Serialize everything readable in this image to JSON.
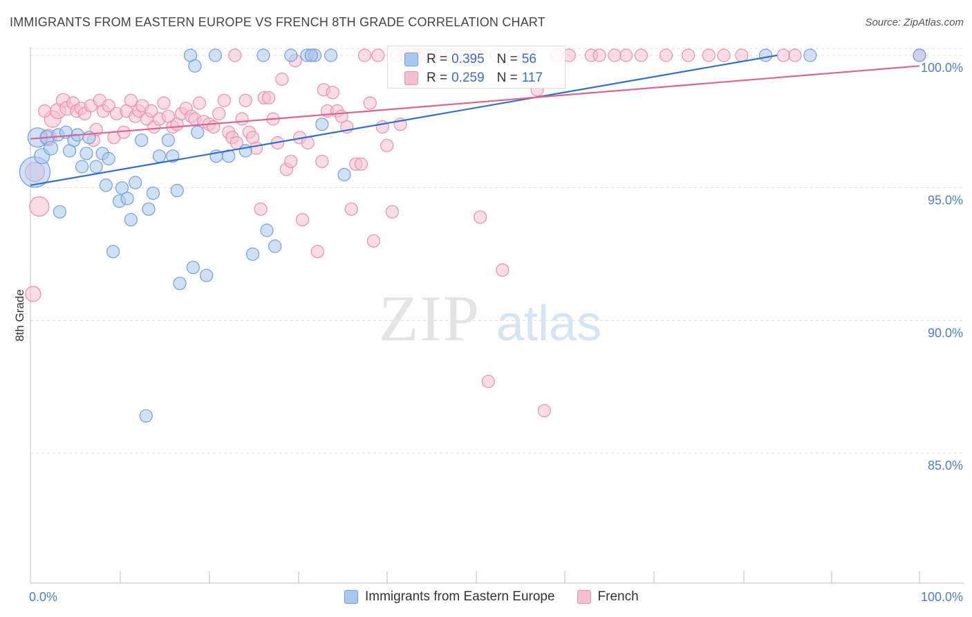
{
  "title": "IMMIGRANTS FROM EASTERN EUROPE VS FRENCH 8TH GRADE CORRELATION CHART",
  "source": "Source: ZipAtlas.com",
  "watermark": {
    "zip": "ZIP",
    "atlas": "atlas"
  },
  "colors": {
    "blue_fill": "#aac8ee",
    "blue_stroke": "#6f9fde",
    "blue_line": "#2e6fce",
    "pink_fill": "#f5bfd0",
    "pink_stroke": "#e98fae",
    "pink_line": "#e0628e",
    "axis_label": "#4a7fd0",
    "grid": "#dddddd"
  },
  "stats": {
    "blue": {
      "r_label": "R =",
      "r_value": "0.395",
      "n_label": "N =",
      "n_value": "56"
    },
    "pink": {
      "r_label": "R =",
      "r_value": "0.259",
      "n_label": "N =",
      "n_value": "117"
    }
  },
  "legend": {
    "blue": "Immigrants from Eastern Europe",
    "pink": "French"
  },
  "chart_data": {
    "type": "scatter",
    "title": "IMMIGRANTS FROM EASTERN EUROPE VS FRENCH 8TH GRADE CORRELATION CHART",
    "xlabel": "",
    "ylabel": "8th Grade",
    "xlim": [
      0,
      105
    ],
    "ylim": [
      80.5,
      100.8
    ],
    "x_tick_labels": [
      "0.0%",
      "100.0%"
    ],
    "y_ticks": [
      85,
      90,
      95,
      100
    ],
    "y_tick_labels": [
      "85.0%",
      "90.0%",
      "95.0%",
      "100.0%"
    ],
    "grid": true,
    "series": [
      {
        "name": "Immigrants from Eastern Europe",
        "color": "blue",
        "trend": {
          "x": [
            0,
            84
          ],
          "y": [
            95.1,
            100.0
          ]
        },
        "points": [
          [
            0.5,
            95.6,
            22
          ],
          [
            0.8,
            96.9,
            14
          ],
          [
            1.3,
            96.2,
            11
          ],
          [
            1.9,
            96.9,
            10
          ],
          [
            2.3,
            96.5,
            10
          ],
          [
            3.1,
            97.0,
            9
          ],
          [
            3.3,
            94.1,
            9
          ],
          [
            4.0,
            97.1,
            9
          ],
          [
            4.4,
            96.4,
            9
          ],
          [
            4.9,
            96.8,
            9
          ],
          [
            5.3,
            97.0,
            9
          ],
          [
            5.8,
            95.8,
            9
          ],
          [
            6.3,
            96.3,
            9
          ],
          [
            6.6,
            96.9,
            9
          ],
          [
            7.4,
            95.8,
            9
          ],
          [
            8.1,
            96.3,
            9
          ],
          [
            8.5,
            95.1,
            9
          ],
          [
            8.8,
            96.1,
            9
          ],
          [
            9.3,
            92.6,
            9
          ],
          [
            10.0,
            94.5,
            9
          ],
          [
            10.3,
            95.0,
            9
          ],
          [
            10.9,
            94.6,
            9
          ],
          [
            11.3,
            93.8,
            9
          ],
          [
            11.8,
            95.2,
            9
          ],
          [
            12.5,
            96.8,
            9
          ],
          [
            13.0,
            86.4,
            9
          ],
          [
            13.3,
            94.2,
            9
          ],
          [
            13.8,
            94.8,
            9
          ],
          [
            14.5,
            96.2,
            9
          ],
          [
            15.5,
            96.8,
            9
          ],
          [
            16.0,
            96.2,
            9
          ],
          [
            16.5,
            94.9,
            9
          ],
          [
            16.8,
            91.4,
            9
          ],
          [
            18.0,
            100.0,
            9
          ],
          [
            18.3,
            92.0,
            9
          ],
          [
            18.5,
            99.6,
            9
          ],
          [
            18.8,
            97.1,
            9
          ],
          [
            19.8,
            91.7,
            9
          ],
          [
            20.8,
            100.0,
            9
          ],
          [
            20.9,
            96.2,
            9
          ],
          [
            22.3,
            96.2,
            9
          ],
          [
            24.2,
            96.4,
            9
          ],
          [
            25.0,
            92.5,
            9
          ],
          [
            26.2,
            100.0,
            9
          ],
          [
            26.6,
            93.4,
            9
          ],
          [
            27.5,
            92.8,
            9
          ],
          [
            29.3,
            100.0,
            9
          ],
          [
            31.1,
            100.0,
            9
          ],
          [
            32.0,
            100.0,
            9
          ],
          [
            32.8,
            97.4,
            9
          ],
          [
            33.8,
            100.0,
            9
          ],
          [
            35.3,
            95.5,
            9
          ],
          [
            82.7,
            100.0,
            9
          ],
          [
            87.7,
            100.0,
            9
          ],
          [
            100.0,
            100.0,
            9
          ],
          [
            31.6,
            100.0,
            9
          ]
        ]
      },
      {
        "name": "French",
        "color": "pink",
        "trend": {
          "x": [
            0,
            100
          ],
          "y": [
            96.85,
            99.6
          ]
        },
        "points": [
          [
            0.3,
            91.0,
            11
          ],
          [
            0.5,
            95.6,
            14
          ],
          [
            1.0,
            94.3,
            14
          ],
          [
            2.0,
            96.9,
            12
          ],
          [
            2.5,
            97.6,
            12
          ],
          [
            3.1,
            97.9,
            11
          ],
          [
            3.7,
            98.3,
            10
          ],
          [
            4.1,
            98.0,
            10
          ],
          [
            4.8,
            98.2,
            9
          ],
          [
            5.2,
            97.9,
            9
          ],
          [
            5.7,
            98.0,
            9
          ],
          [
            6.1,
            97.8,
            9
          ],
          [
            6.8,
            98.1,
            9
          ],
          [
            7.1,
            96.8,
            9
          ],
          [
            7.4,
            97.2,
            9
          ],
          [
            7.8,
            98.3,
            9
          ],
          [
            8.2,
            97.9,
            9
          ],
          [
            8.8,
            98.1,
            9
          ],
          [
            9.4,
            96.9,
            9
          ],
          [
            9.7,
            97.8,
            9
          ],
          [
            10.5,
            97.1,
            9
          ],
          [
            10.8,
            97.9,
            9
          ],
          [
            11.3,
            98.3,
            9
          ],
          [
            11.8,
            97.7,
            9
          ],
          [
            12.2,
            97.9,
            9
          ],
          [
            12.6,
            98.1,
            9
          ],
          [
            13.1,
            97.6,
            9
          ],
          [
            13.6,
            97.9,
            9
          ],
          [
            13.9,
            97.3,
            9
          ],
          [
            14.5,
            97.6,
            9
          ],
          [
            15.0,
            98.2,
            9
          ],
          [
            15.5,
            97.7,
            9
          ],
          [
            16.0,
            97.3,
            9
          ],
          [
            16.5,
            97.4,
            9
          ],
          [
            17.0,
            97.8,
            9
          ],
          [
            17.5,
            98.0,
            9
          ],
          [
            18.1,
            97.7,
            9
          ],
          [
            18.5,
            97.6,
            9
          ],
          [
            19.0,
            98.2,
            9
          ],
          [
            19.5,
            97.5,
            9
          ],
          [
            20.1,
            97.4,
            9
          ],
          [
            20.6,
            97.3,
            9
          ],
          [
            21.2,
            97.8,
            9
          ],
          [
            21.8,
            98.3,
            9
          ],
          [
            22.3,
            97.1,
            9
          ],
          [
            22.7,
            96.9,
            9
          ],
          [
            23.2,
            96.7,
            9
          ],
          [
            23.8,
            97.6,
            9
          ],
          [
            24.2,
            98.3,
            9
          ],
          [
            24.6,
            97.1,
            9
          ],
          [
            25.0,
            96.9,
            9
          ],
          [
            25.4,
            96.5,
            9
          ],
          [
            25.9,
            94.2,
            9
          ],
          [
            26.3,
            98.4,
            9
          ],
          [
            26.8,
            98.4,
            9
          ],
          [
            27.3,
            97.6,
            9
          ],
          [
            27.8,
            96.7,
            9
          ],
          [
            28.3,
            99.1,
            9
          ],
          [
            28.8,
            95.7,
            9
          ],
          [
            29.3,
            96.0,
            9
          ],
          [
            29.8,
            99.8,
            9
          ],
          [
            30.3,
            96.9,
            9
          ],
          [
            30.6,
            93.8,
            9
          ],
          [
            31.2,
            96.7,
            9
          ],
          [
            31.6,
            100.0,
            9
          ],
          [
            32.3,
            92.6,
            9
          ],
          [
            32.8,
            96.0,
            9
          ],
          [
            33.0,
            98.7,
            9
          ],
          [
            33.4,
            97.9,
            9
          ],
          [
            34.0,
            98.6,
            9
          ],
          [
            34.5,
            97.9,
            9
          ],
          [
            35.0,
            97.7,
            9
          ],
          [
            35.6,
            97.3,
            9
          ],
          [
            36.1,
            94.2,
            9
          ],
          [
            36.6,
            95.9,
            9
          ],
          [
            37.2,
            95.9,
            9
          ],
          [
            37.6,
            100.0,
            9
          ],
          [
            38.2,
            98.2,
            9
          ],
          [
            38.6,
            93.0,
            9
          ],
          [
            39.1,
            100.0,
            9
          ],
          [
            39.6,
            97.3,
            9
          ],
          [
            40.1,
            96.6,
            9
          ],
          [
            40.7,
            94.1,
            9
          ],
          [
            41.2,
            100.0,
            9
          ],
          [
            41.6,
            97.4,
            9
          ],
          [
            42.2,
            100.0,
            9
          ],
          [
            43.1,
            100.0,
            9
          ],
          [
            44.5,
            100.0,
            9
          ],
          [
            45.6,
            100.0,
            9
          ],
          [
            47.3,
            100.0,
            9
          ],
          [
            49.0,
            100.0,
            9
          ],
          [
            50.1,
            100.0,
            9
          ],
          [
            50.6,
            93.9,
            9
          ],
          [
            51.5,
            87.7,
            9
          ],
          [
            52.4,
            100.0,
            9
          ],
          [
            53.1,
            91.9,
            9
          ],
          [
            54.3,
            100.0,
            9
          ],
          [
            56.0,
            100.0,
            9
          ],
          [
            57.0,
            98.7,
            9
          ],
          [
            57.8,
            86.6,
            9
          ],
          [
            59.2,
            100.0,
            9
          ],
          [
            60.6,
            100.0,
            9
          ],
          [
            63.1,
            100.0,
            9
          ],
          [
            64.0,
            100.0,
            9
          ],
          [
            67.0,
            100.0,
            9
          ],
          [
            68.7,
            100.0,
            9
          ],
          [
            71.5,
            100.0,
            9
          ],
          [
            74.0,
            100.0,
            9
          ],
          [
            76.3,
            100.0,
            9
          ],
          [
            78.0,
            100.0,
            9
          ],
          [
            80.0,
            100.0,
            9
          ],
          [
            84.7,
            100.0,
            9
          ],
          [
            86.0,
            100.0,
            9
          ],
          [
            1.6,
            97.9,
            9
          ],
          [
            100.0,
            100.0,
            9
          ],
          [
            23.0,
            100.0,
            9
          ],
          [
            43.5,
            100.0,
            9
          ],
          [
            65.7,
            100.0,
            9
          ],
          [
            45.0,
            100.0,
            9
          ]
        ]
      }
    ]
  }
}
